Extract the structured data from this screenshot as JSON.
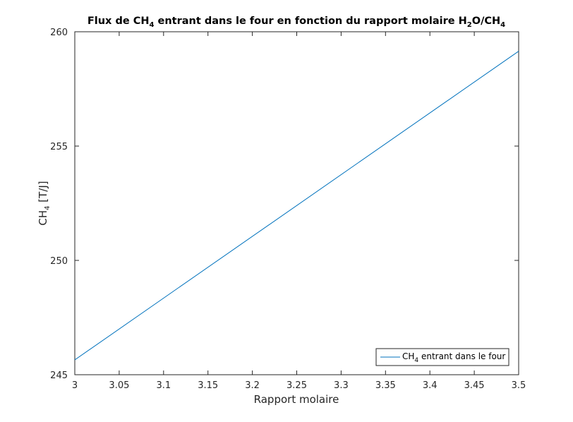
{
  "chart_data": {
    "type": "line",
    "title_parts": {
      "a": "Flux de CH",
      "sub1": "4",
      "b": " entrant dans le four en fonction du rapport molaire H",
      "sub2": "2",
      "c": "O/CH",
      "sub3": "4"
    },
    "xlabel": "Rapport molaire",
    "ylabel_parts": {
      "a": "CH",
      "sub": "4",
      "b": "  [T/J]"
    },
    "xlim": [
      3,
      3.5
    ],
    "ylim": [
      245,
      260
    ],
    "xticks": [
      "3",
      "3.05",
      "3.1",
      "3.15",
      "3.2",
      "3.25",
      "3.3",
      "3.35",
      "3.4",
      "3.45",
      "3.5"
    ],
    "yticks": [
      "245",
      "250",
      "255",
      "260"
    ],
    "grid": false,
    "legend_position": "bottom-right",
    "series": [
      {
        "legend_parts": {
          "a": "CH",
          "sub": "4",
          "b": " entrant dans le four"
        },
        "color": "#0072BD",
        "x": [
          3.0,
          3.5
        ],
        "y": [
          245.65,
          259.15
        ]
      }
    ]
  }
}
